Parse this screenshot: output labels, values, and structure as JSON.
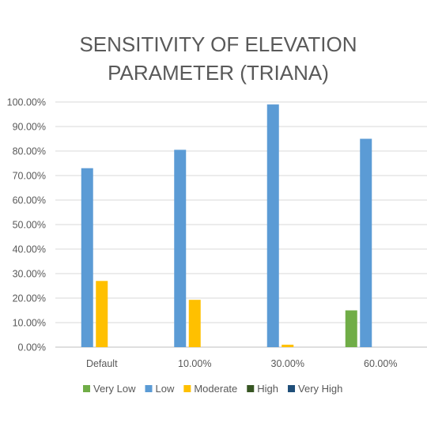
{
  "chart_data": {
    "type": "bar",
    "title_lines": [
      "SENSITIVITY OF ELEVATION",
      "PARAMETER (TRIANA)"
    ],
    "categories": [
      "Default",
      "10.00%",
      "30.00%",
      "60.00%"
    ],
    "series": [
      {
        "name": "Very Low",
        "color": "#70AD47",
        "values": [
          0,
          0,
          0,
          15
        ]
      },
      {
        "name": "Low",
        "color": "#5B9BD5",
        "values": [
          73,
          80.5,
          99,
          85
        ]
      },
      {
        "name": "Moderate",
        "color": "#FFC000",
        "values": [
          27,
          19.3,
          1,
          0
        ]
      },
      {
        "name": "High",
        "color": "#375623",
        "values": [
          0,
          0,
          0,
          0
        ]
      },
      {
        "name": "Very High",
        "color": "#1F4E79",
        "values": [
          0,
          0,
          0,
          0
        ]
      }
    ],
    "y_ticks": [
      "0.00%",
      "10.00%",
      "20.00%",
      "30.00%",
      "40.00%",
      "50.00%",
      "60.00%",
      "70.00%",
      "80.00%",
      "90.00%",
      "100.00%"
    ],
    "ylim": [
      0,
      100
    ],
    "grid": true,
    "legend_position": "bottom"
  }
}
